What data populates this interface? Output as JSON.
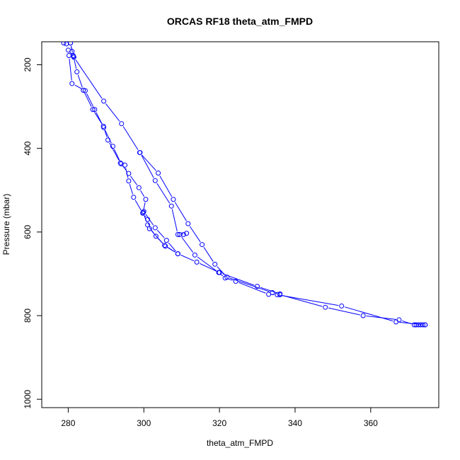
{
  "chart_data": {
    "type": "line",
    "title": "ORCAS RF18 theta_atm_FMPD",
    "xlabel": "theta_atm_FMPD",
    "ylabel": "Pressure (mbar)",
    "xlim": [
      273,
      378
    ],
    "ylim": [
      1020,
      145
    ],
    "y_reversed": true,
    "xticks": [
      280,
      300,
      320,
      340,
      360
    ],
    "yticks": [
      200,
      400,
      600,
      800,
      1000
    ],
    "grid": false,
    "legend": "none",
    "color": "#0000ff",
    "marker": "open-circle",
    "series": [
      {
        "values": [
          {
            "x": 278.8,
            "y": 148
          },
          {
            "x": 279.5,
            "y": 150
          },
          {
            "x": 280.0,
            "y": 165
          },
          {
            "x": 280.2,
            "y": 178
          },
          {
            "x": 281.0,
            "y": 245
          },
          {
            "x": 284.5,
            "y": 262
          },
          {
            "x": 287.0,
            "y": 307
          },
          {
            "x": 289.4,
            "y": 350
          },
          {
            "x": 291.8,
            "y": 395
          },
          {
            "x": 294.0,
            "y": 437
          },
          {
            "x": 295.0,
            "y": 440
          },
          {
            "x": 296.0,
            "y": 478
          },
          {
            "x": 297.3,
            "y": 517
          },
          {
            "x": 299.7,
            "y": 555
          },
          {
            "x": 301.0,
            "y": 570
          },
          {
            "x": 301.5,
            "y": 592
          },
          {
            "x": 305.5,
            "y": 632
          },
          {
            "x": 309.0,
            "y": 652
          }
        ]
      },
      {
        "values": [
          {
            "x": 309.0,
            "y": 652
          },
          {
            "x": 305.7,
            "y": 634
          },
          {
            "x": 303.2,
            "y": 610
          },
          {
            "x": 301.0,
            "y": 583
          },
          {
            "x": 299.8,
            "y": 553
          },
          {
            "x": 300.5,
            "y": 522
          },
          {
            "x": 298.7,
            "y": 494
          },
          {
            "x": 296.0,
            "y": 460
          },
          {
            "x": 293.8,
            "y": 435
          },
          {
            "x": 290.5,
            "y": 380
          },
          {
            "x": 289.3,
            "y": 347
          },
          {
            "x": 286.5,
            "y": 307
          },
          {
            "x": 284.0,
            "y": 261
          },
          {
            "x": 282.3,
            "y": 217
          },
          {
            "x": 281.4,
            "y": 180
          },
          {
            "x": 281.0,
            "y": 168
          },
          {
            "x": 280.6,
            "y": 148
          }
        ]
      },
      {
        "values": [
          {
            "x": 280.6,
            "y": 148
          },
          {
            "x": 281.3,
            "y": 178
          },
          {
            "x": 281.5,
            "y": 182
          },
          {
            "x": 289.4,
            "y": 287
          },
          {
            "x": 294.1,
            "y": 341
          },
          {
            "x": 298.9,
            "y": 410
          },
          {
            "x": 303.8,
            "y": 459
          },
          {
            "x": 307.8,
            "y": 522
          },
          {
            "x": 311.7,
            "y": 580
          },
          {
            "x": 315.4,
            "y": 630
          },
          {
            "x": 318.8,
            "y": 677
          },
          {
            "x": 322.0,
            "y": 708
          },
          {
            "x": 334.0,
            "y": 745
          },
          {
            "x": 336.0,
            "y": 750
          },
          {
            "x": 348.0,
            "y": 780
          },
          {
            "x": 358.0,
            "y": 800
          },
          {
            "x": 367.5,
            "y": 810
          },
          {
            "x": 371.5,
            "y": 822
          },
          {
            "x": 372.0,
            "y": 822
          },
          {
            "x": 372.6,
            "y": 822
          },
          {
            "x": 373.2,
            "y": 822
          },
          {
            "x": 373.8,
            "y": 822
          },
          {
            "x": 374.4,
            "y": 822
          }
        ]
      },
      {
        "values": [
          {
            "x": 374.4,
            "y": 822
          },
          {
            "x": 366.7,
            "y": 815
          },
          {
            "x": 352.3,
            "y": 777
          },
          {
            "x": 335.3,
            "y": 750
          },
          {
            "x": 333.0,
            "y": 749
          },
          {
            "x": 324.3,
            "y": 718
          },
          {
            "x": 321.5,
            "y": 710
          },
          {
            "x": 319.8,
            "y": 697
          },
          {
            "x": 313.5,
            "y": 655
          },
          {
            "x": 309.5,
            "y": 606
          },
          {
            "x": 310.5,
            "y": 606
          },
          {
            "x": 311.3,
            "y": 603
          },
          {
            "x": 309.0,
            "y": 606
          },
          {
            "x": 307.3,
            "y": 538
          },
          {
            "x": 303.0,
            "y": 477
          },
          {
            "x": 299.0,
            "y": 410
          }
        ]
      },
      {
        "values": [
          {
            "x": 300.0,
            "y": 551
          },
          {
            "x": 303.0,
            "y": 590
          },
          {
            "x": 306.0,
            "y": 620
          },
          {
            "x": 309.0,
            "y": 652
          },
          {
            "x": 314.0,
            "y": 672
          },
          {
            "x": 320.0,
            "y": 697
          },
          {
            "x": 330.0,
            "y": 730
          },
          {
            "x": 336.0,
            "y": 748
          }
        ]
      }
    ]
  }
}
